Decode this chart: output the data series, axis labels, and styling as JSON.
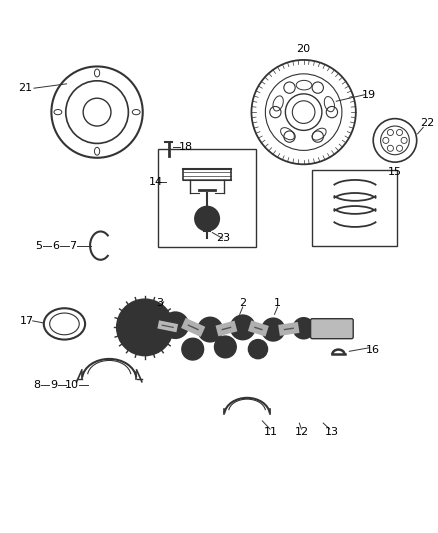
{
  "background_color": "#ffffff",
  "fig_width": 4.38,
  "fig_height": 5.33,
  "dpi": 100,
  "line_color": "#333333",
  "text_color": "#000000",
  "font_size": 8
}
